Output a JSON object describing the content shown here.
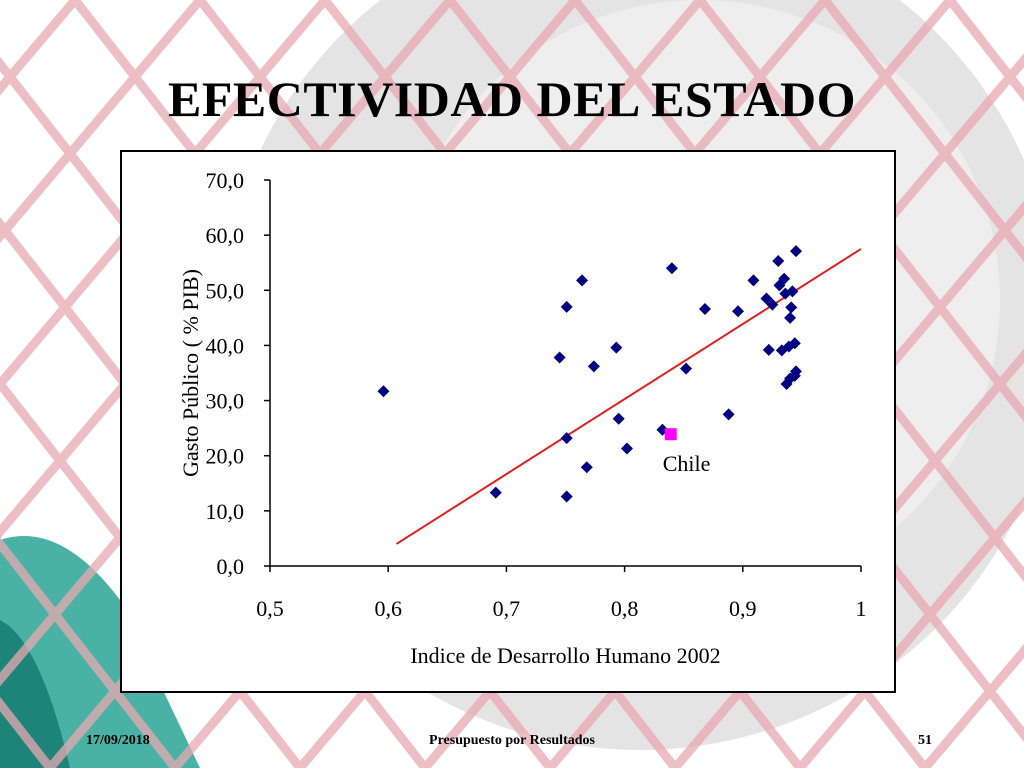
{
  "slide": {
    "title": "EFECTIVIDAD DEL ESTADO",
    "footer_date": "17/09/2018",
    "footer_center": "Presupuesto por Resultados",
    "page_number": "51"
  },
  "colors": {
    "points": "#000080",
    "highlight": "#ff00ff",
    "trendline": "#e02020",
    "background_grid": "#e8a9b0"
  },
  "chart_data": {
    "type": "scatter",
    "title": "",
    "xlabel": "Indice de Desarrollo Humano 2002",
    "ylabel": "Gasto Público ( % PIB)",
    "xlim": [
      0.5,
      1
    ],
    "ylim": [
      0,
      70
    ],
    "x_ticks": [
      0.5,
      0.6,
      0.7,
      0.8,
      0.9,
      1
    ],
    "x_tick_labels": [
      "0,5",
      "0,6",
      "0,7",
      "0,8",
      "0,9",
      "1"
    ],
    "y_ticks": [
      0,
      10,
      20,
      30,
      40,
      50,
      60,
      70
    ],
    "y_tick_labels": [
      "0,0",
      "10,0",
      "20,0",
      "30,0",
      "40,0",
      "50,0",
      "60,0",
      "70,0"
    ],
    "grid": false,
    "series": [
      {
        "points": [
          [
            0.596,
            31.7
          ],
          [
            0.691,
            13.3
          ],
          [
            0.745,
            37.8
          ],
          [
            0.751,
            47.0
          ],
          [
            0.751,
            23.2
          ],
          [
            0.751,
            12.6
          ],
          [
            0.764,
            51.8
          ],
          [
            0.768,
            17.9
          ],
          [
            0.774,
            36.2
          ],
          [
            0.793,
            39.6
          ],
          [
            0.795,
            26.7
          ],
          [
            0.802,
            21.3
          ],
          [
            0.832,
            24.7
          ],
          [
            0.84,
            54.0
          ],
          [
            0.852,
            35.8
          ],
          [
            0.868,
            46.6
          ],
          [
            0.888,
            27.5
          ],
          [
            0.896,
            46.2
          ],
          [
            0.909,
            51.8
          ],
          [
            0.92,
            48.5
          ],
          [
            0.922,
            39.2
          ],
          [
            0.925,
            47.4
          ],
          [
            0.93,
            55.3
          ],
          [
            0.931,
            50.9
          ],
          [
            0.933,
            39.1
          ],
          [
            0.935,
            52.1
          ],
          [
            0.936,
            49.4
          ],
          [
            0.937,
            33.0
          ],
          [
            0.939,
            39.8
          ],
          [
            0.94,
            45.0
          ],
          [
            0.94,
            34.0
          ],
          [
            0.941,
            46.9
          ],
          [
            0.942,
            49.8
          ],
          [
            0.944,
            34.5
          ],
          [
            0.944,
            40.4
          ],
          [
            0.945,
            57.1
          ],
          [
            0.945,
            35.3
          ]
        ]
      }
    ],
    "highlight_point": {
      "label": "Chile",
      "x": 0.839,
      "y": 23.9
    },
    "trendline": {
      "x": [
        0.607,
        1
      ],
      "y": [
        4.0,
        57.5
      ]
    }
  }
}
